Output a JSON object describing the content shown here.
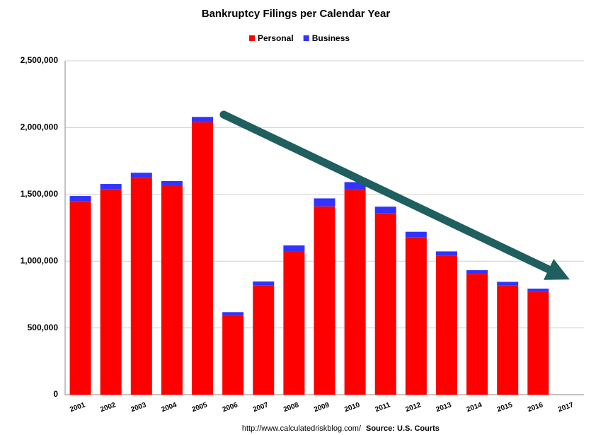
{
  "chart_data": {
    "type": "stacked_bar",
    "title": "Bankruptcy Filings per Calendar Year",
    "categories": [
      "2001",
      "2002",
      "2003",
      "2004",
      "2005",
      "2006",
      "2007",
      "2008",
      "2009",
      "2010",
      "2011",
      "2012",
      "2013",
      "2014",
      "2015",
      "2016",
      "2017"
    ],
    "series": [
      {
        "name": "Personal",
        "color": "#ff0000",
        "values": [
          1450000,
          1540000,
          1625000,
          1565000,
          2040000,
          598000,
          820000,
          1075000,
          1410000,
          1535000,
          1360000,
          1180000,
          1040000,
          905000,
          820000,
          770000,
          null
        ]
      },
      {
        "name": "Business",
        "color": "#3333ff",
        "values": [
          38000,
          38000,
          37000,
          35000,
          40000,
          20000,
          28000,
          43000,
          60000,
          57000,
          48000,
          40000,
          33000,
          27000,
          25000,
          24000,
          null
        ]
      }
    ],
    "ylim": [
      0,
      2500000
    ],
    "yticks": [
      0,
      {
        "value": 500000,
        "label": "500,000"
      },
      {
        "value": 1000000,
        "label": "1,000,000"
      },
      {
        "value": 1500000,
        "label": "1,500,000"
      },
      {
        "value": 2000000,
        "label": "2,000,000"
      },
      {
        "value": 2500000,
        "label": "2,500,000"
      }
    ],
    "grid": true,
    "legend": "top",
    "footer": {
      "url": "http://www.calculatedriskblog.com/",
      "source": "Source: U.S. Courts"
    }
  }
}
